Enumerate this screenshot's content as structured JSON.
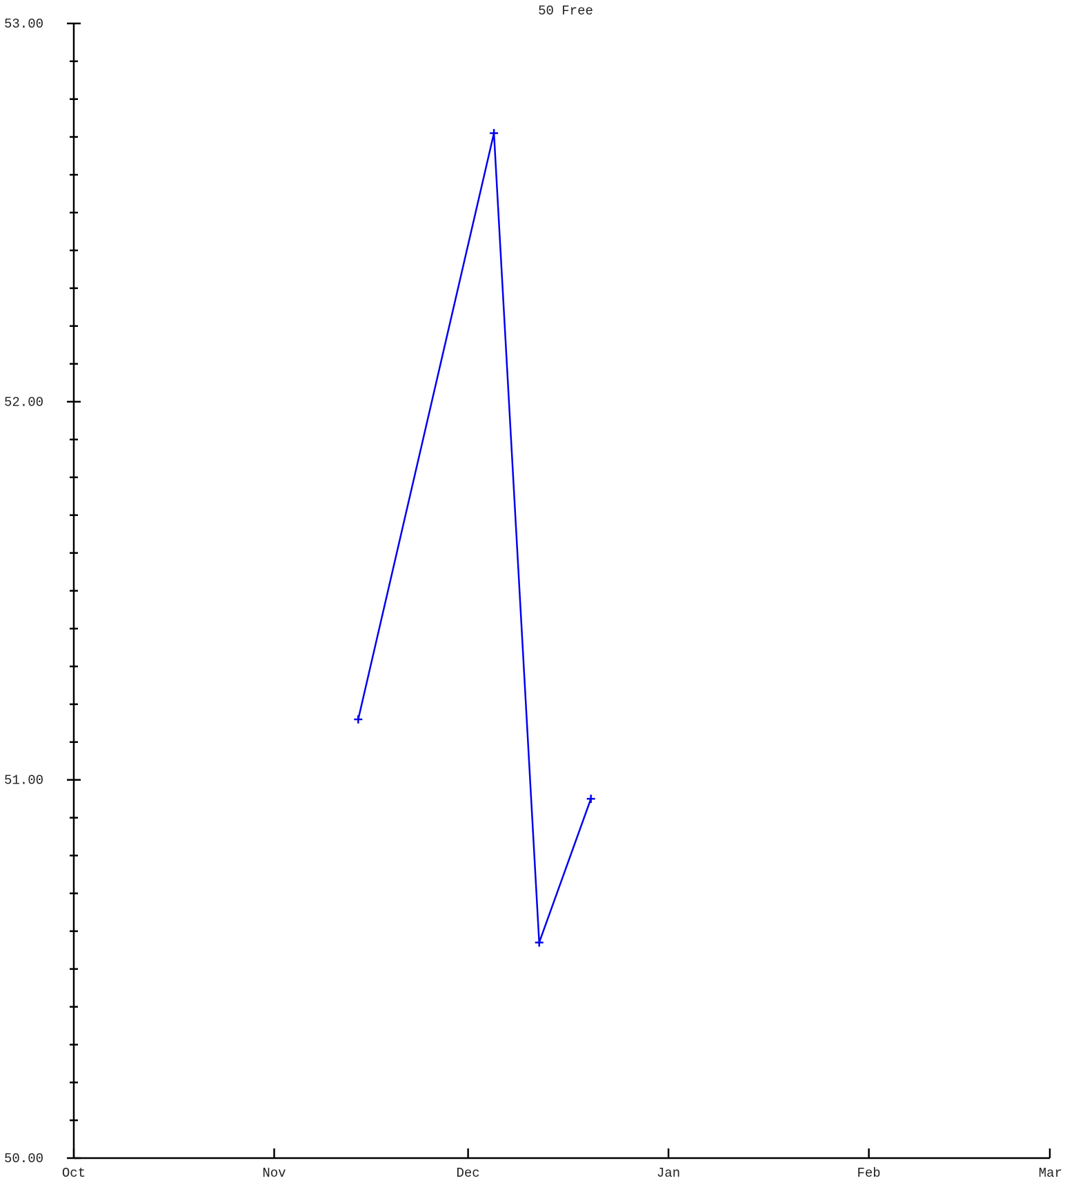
{
  "chart_data": {
    "type": "line",
    "title": "50 Free",
    "xlabel": "",
    "ylabel": "",
    "x_ticks": [
      "Oct",
      "Nov",
      "Dec",
      "Jan",
      "Feb",
      "Mar"
    ],
    "y_ticks": [
      "50.00",
      "51.00",
      "52.00",
      "53.00"
    ],
    "ylim": [
      50.0,
      53.0
    ],
    "xlim": [
      "Oct 1",
      "Mar 1"
    ],
    "x_tick_dates": [
      "Oct 1",
      "Nov 1",
      "Dec 1",
      "Jan 1",
      "Feb 1",
      "Mar 1"
    ],
    "y_minor_step": 0.1,
    "grid": false,
    "series": [
      {
        "color": "#0000ee",
        "marker": "plus",
        "x": [
          "Nov 14",
          "Dec 5",
          "Dec 12",
          "Dec 20"
        ],
        "y": [
          51.16,
          52.71,
          50.57,
          50.95
        ]
      }
    ]
  }
}
